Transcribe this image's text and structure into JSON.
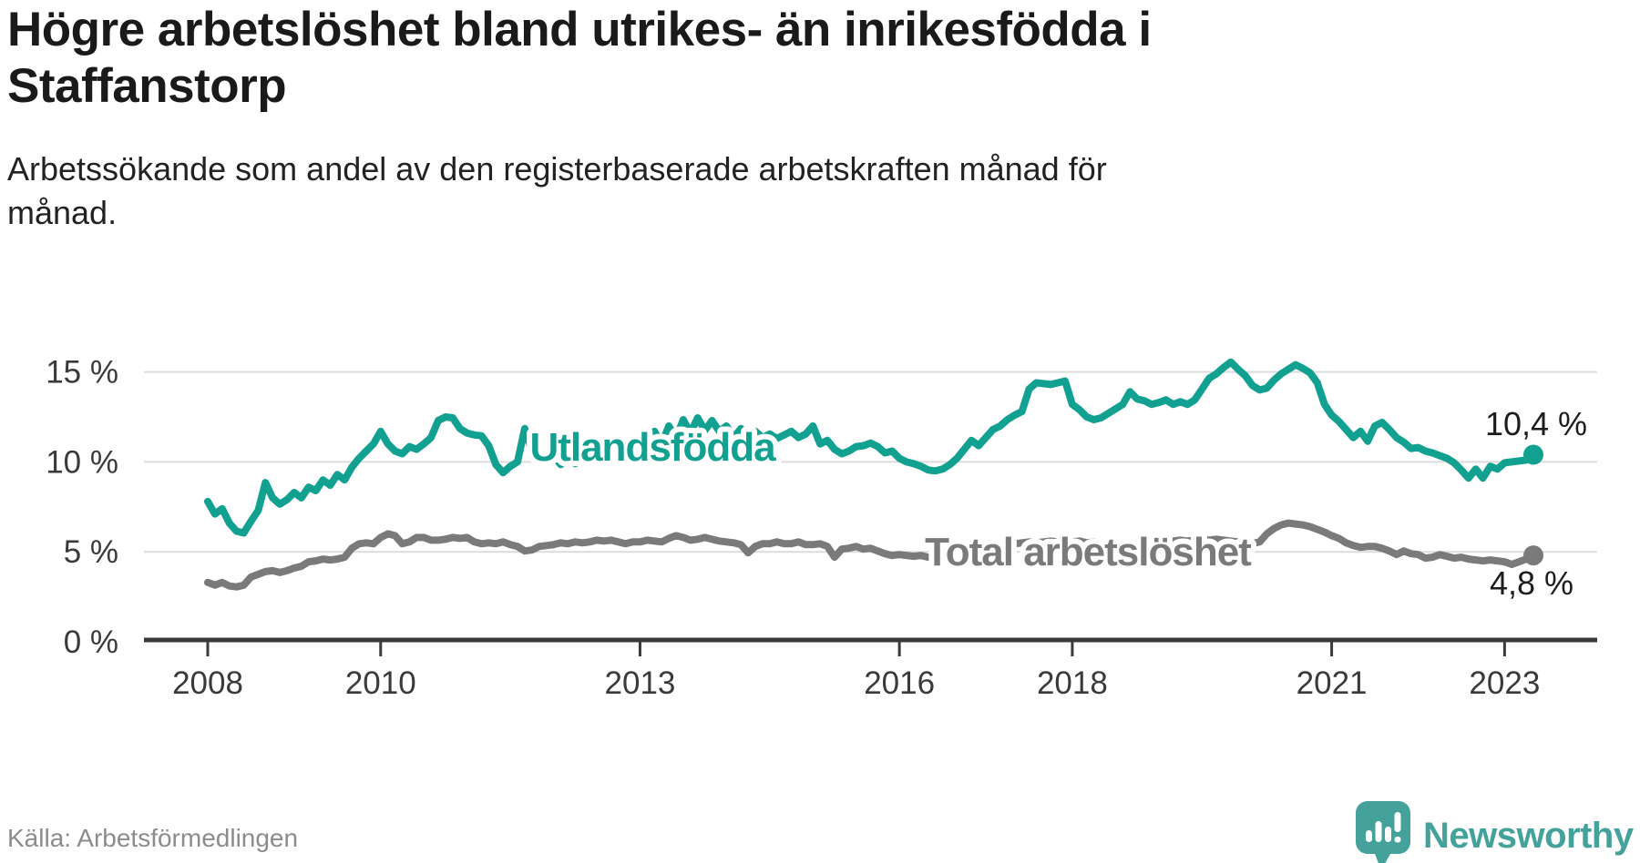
{
  "header": {
    "title": "Högre arbetslöshet bland utrikes- än inrikesfödda i Staffanstorp",
    "subtitle": "Arbetssökande som andel av den registerbaserade arbetskraften månad för månad."
  },
  "footer": {
    "source": "Källa: Arbetsförmedlingen",
    "brand": "Newsworthy"
  },
  "colors": {
    "accent_teal": "#12a091",
    "series_gray": "#7a7a7a",
    "gridline": "#dcdcdc",
    "axis": "#3a3a3a",
    "tick_text": "#3a3a3a",
    "title_text": "#1a1a1a",
    "source_text": "#8c8c8c",
    "brand_teal": "#44a29a",
    "value_label_text": "#1d1d1d"
  },
  "chart_data": {
    "type": "line",
    "title": "Högre arbetslöshet bland utrikes- än inrikesfödda i Staffanstorp",
    "subtitle": "Arbetssökande som andel av den registerbaserade arbetskraften månad för månad.",
    "x_unit": "month",
    "x_start": "2008-01",
    "x_end": "2023-05",
    "x_tick_labels": [
      "2008",
      "2010",
      "2013",
      "2016",
      "2018",
      "2021",
      "2023"
    ],
    "x_tick_month_index": [
      0,
      24,
      60,
      96,
      120,
      156,
      180
    ],
    "y_ticks": [
      {
        "value": 0,
        "label": "0 %"
      },
      {
        "value": 5,
        "label": "5 %"
      },
      {
        "value": 10,
        "label": "10 %"
      },
      {
        "value": 15,
        "label": "15 %"
      }
    ],
    "ylim": [
      0,
      16.5
    ],
    "grid": true,
    "legend_position": "inline-labels",
    "series": [
      {
        "name": "Utlandsfödda",
        "color": "#12a091",
        "end_label": "10,4 %",
        "end_value": 10.4,
        "values": [
          7.8,
          7.1,
          7.4,
          6.6,
          6.15,
          6.05,
          6.7,
          7.3,
          8.85,
          8.0,
          7.65,
          7.9,
          8.3,
          8.0,
          8.6,
          8.4,
          9.0,
          8.7,
          9.3,
          9.0,
          9.7,
          10.2,
          10.6,
          11.0,
          11.7,
          11.0,
          10.6,
          10.45,
          10.85,
          10.7,
          11.0,
          11.35,
          12.3,
          12.5,
          12.45,
          11.85,
          11.6,
          11.5,
          11.45,
          10.9,
          9.85,
          9.4,
          9.75,
          10.0,
          11.85,
          10.6,
          10.15,
          10.0,
          10.3,
          9.85,
          10.4,
          9.9,
          10.5,
          10.05,
          10.6,
          10.2,
          10.75,
          10.4,
          11.0,
          10.7,
          11.3,
          10.8,
          11.7,
          11.0,
          12.0,
          11.3,
          12.35,
          11.6,
          12.45,
          11.75,
          12.3,
          11.7,
          12.0,
          11.35,
          11.85,
          11.45,
          11.7,
          11.35,
          11.55,
          11.3,
          11.5,
          11.7,
          11.35,
          11.55,
          12.0,
          11.0,
          11.2,
          10.7,
          10.45,
          10.6,
          10.85,
          10.9,
          11.05,
          10.85,
          10.5,
          10.6,
          10.2,
          10.0,
          9.9,
          9.75,
          9.55,
          9.5,
          9.6,
          9.85,
          10.2,
          10.7,
          11.2,
          10.9,
          11.35,
          11.8,
          12.0,
          12.35,
          12.6,
          12.8,
          14.05,
          14.4,
          14.35,
          14.3,
          14.4,
          14.5,
          13.2,
          12.9,
          12.5,
          12.35,
          12.45,
          12.7,
          12.95,
          13.2,
          13.9,
          13.5,
          13.4,
          13.2,
          13.3,
          13.45,
          13.2,
          13.35,
          13.2,
          13.45,
          14.05,
          14.65,
          14.9,
          15.25,
          15.55,
          15.15,
          14.8,
          14.25,
          14.0,
          14.1,
          14.55,
          14.9,
          15.15,
          15.4,
          15.2,
          14.95,
          14.4,
          13.2,
          12.6,
          12.25,
          11.8,
          11.35,
          11.7,
          11.15,
          12.0,
          12.2,
          11.8,
          11.35,
          11.1,
          10.75,
          10.8,
          10.6,
          10.5,
          10.35,
          10.2,
          9.95,
          9.55,
          9.1,
          9.6,
          9.1,
          9.75,
          9.6,
          9.95,
          10.0,
          10.05,
          10.1,
          10.4
        ]
      },
      {
        "name": "Total arbetslöshet",
        "color": "#7a7a7a",
        "end_label": "4,8 %",
        "end_value": 4.8,
        "values": [
          3.3,
          3.15,
          3.3,
          3.1,
          3.05,
          3.15,
          3.6,
          3.75,
          3.9,
          3.95,
          3.85,
          3.95,
          4.1,
          4.2,
          4.45,
          4.5,
          4.6,
          4.55,
          4.6,
          4.7,
          5.2,
          5.45,
          5.5,
          5.45,
          5.8,
          6.0,
          5.9,
          5.45,
          5.55,
          5.8,
          5.8,
          5.65,
          5.65,
          5.7,
          5.8,
          5.75,
          5.8,
          5.55,
          5.45,
          5.5,
          5.45,
          5.55,
          5.4,
          5.3,
          5.05,
          5.1,
          5.3,
          5.35,
          5.4,
          5.5,
          5.45,
          5.55,
          5.5,
          5.55,
          5.65,
          5.6,
          5.65,
          5.55,
          5.45,
          5.55,
          5.55,
          5.65,
          5.6,
          5.55,
          5.75,
          5.9,
          5.8,
          5.65,
          5.7,
          5.8,
          5.7,
          5.6,
          5.55,
          5.5,
          5.4,
          4.95,
          5.3,
          5.45,
          5.45,
          5.55,
          5.45,
          5.45,
          5.55,
          5.4,
          5.4,
          5.45,
          5.3,
          4.7,
          5.15,
          5.2,
          5.3,
          5.15,
          5.2,
          5.05,
          4.9,
          4.8,
          4.85,
          4.8,
          4.75,
          4.8,
          4.7,
          4.75,
          4.8,
          4.9,
          5.0,
          5.1,
          5.2,
          5.3,
          5.35,
          5.3,
          5.4,
          5.5,
          5.45,
          5.5,
          5.55,
          5.5,
          5.55,
          5.6,
          5.55,
          5.6,
          5.55,
          5.6,
          5.5,
          5.55,
          5.45,
          5.5,
          5.4,
          5.45,
          5.35,
          5.4,
          5.45,
          5.5,
          5.5,
          5.55,
          5.6,
          5.65,
          5.6,
          5.65,
          5.7,
          5.65,
          5.7,
          5.65,
          5.6,
          5.55,
          5.5,
          5.45,
          5.55,
          6.0,
          6.3,
          6.5,
          6.6,
          6.55,
          6.5,
          6.4,
          6.25,
          6.1,
          5.9,
          5.75,
          5.5,
          5.35,
          5.25,
          5.3,
          5.3,
          5.2,
          5.05,
          4.85,
          5.05,
          4.9,
          4.85,
          4.65,
          4.7,
          4.85,
          4.75,
          4.65,
          4.7,
          4.6,
          4.55,
          4.5,
          4.55,
          4.5,
          4.45,
          4.3,
          4.45,
          4.6,
          4.8
        ]
      }
    ]
  }
}
